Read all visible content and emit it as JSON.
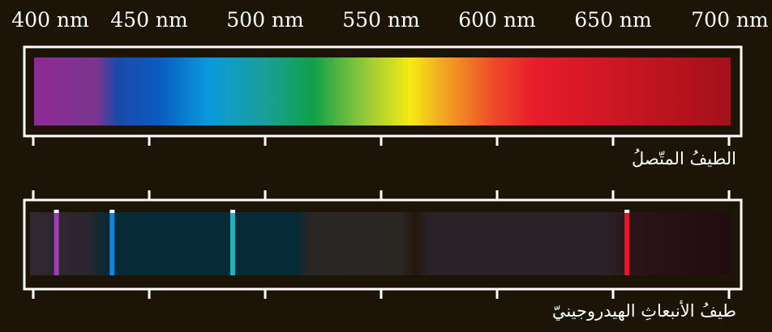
{
  "wavelength_axis": {
    "ticks": [
      {
        "value": 400,
        "label": "400 nm"
      },
      {
        "value": 450,
        "label": "450 nm"
      },
      {
        "value": 500,
        "label": "500 nm"
      },
      {
        "value": 550,
        "label": "550 nm"
      },
      {
        "value": 600,
        "label": "600 nm"
      },
      {
        "value": 650,
        "label": "650 nm"
      },
      {
        "value": 700,
        "label": "700 nm"
      }
    ]
  },
  "continuous_spectrum": {
    "label": "الطيفُ المتّصلُ",
    "colors": {
      "violet": "#8e2a94",
      "blue": "#0a5cc0",
      "cyan": "#0a9adc",
      "green": "#10a04a",
      "yellow": "#f6ea14",
      "orange": "#f39a25",
      "red": "#e81c2a",
      "deep_red": "#a3101a"
    }
  },
  "hydrogen_spectrum": {
    "label": "طيفُ الأنبعاثِ الهيدروجينيّ",
    "lines": [
      {
        "wavelength_nm": 410,
        "color": "#a23cb4"
      },
      {
        "wavelength_nm": 434,
        "color": "#1a82d8"
      },
      {
        "wavelength_nm": 486,
        "color": "#21b4bc"
      },
      {
        "wavelength_nm": 656,
        "color": "#e0192c"
      }
    ]
  }
}
